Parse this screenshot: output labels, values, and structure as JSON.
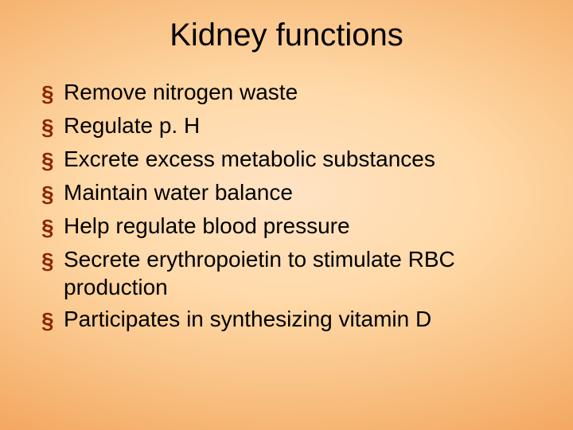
{
  "slide": {
    "title": "Kidney functions",
    "title_fontsize": 40,
    "title_color": "#000000",
    "body_fontsize": 28,
    "body_color": "#000000",
    "bullet_color": "#8b2500",
    "bullet_glyph": "§",
    "background_gradient": {
      "type": "radial",
      "stops": [
        "#ffe3c4",
        "#ffd9a8",
        "#f9c285",
        "#f4a862",
        "#ef8d3d",
        "#ec7a28"
      ]
    },
    "bullets": [
      "Remove nitrogen waste",
      "Regulate p. H",
      "Excrete excess metabolic substances",
      "Maintain water balance",
      "Help regulate blood pressure",
      "Secrete erythropoietin to stimulate RBC production",
      "Participates in synthesizing vitamin D"
    ]
  }
}
